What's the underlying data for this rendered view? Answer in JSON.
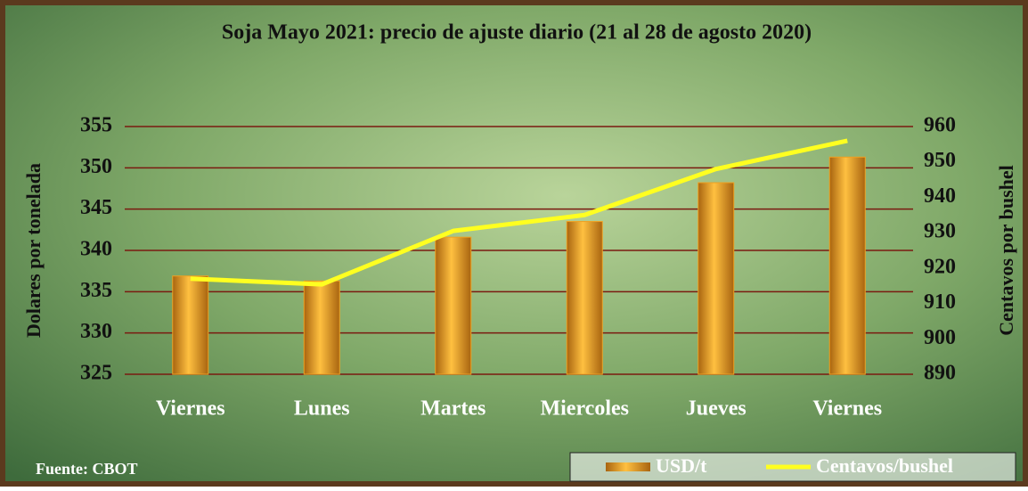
{
  "chart_data": {
    "type": "bar",
    "title": "Soja Mayo 2021: precio de ajuste diario  (21 al 28 de agosto 2020)",
    "y_label": "Dolares por tonelada",
    "y2_label": "Centavos por bushel",
    "source": "Fuente:  CBOT",
    "categories": [
      "Viernes",
      "Lunes",
      "Martes",
      "Miercoles",
      "Jueves",
      "Viernes"
    ],
    "series": [
      {
        "name": "USD/t",
        "type": "bar",
        "color": "#f0a020",
        "values": [
          336.9,
          336.3,
          341.6,
          343.5,
          348.2,
          351.3
        ]
      },
      {
        "name": "Centavos/bushel",
        "type": "line",
        "axis": "y2",
        "color": "#ffff20",
        "values": [
          917,
          915.4,
          930.5,
          935,
          948,
          956
        ]
      }
    ],
    "ylim": [
      325,
      355
    ],
    "yticks": [
      325,
      330,
      335,
      340,
      345,
      350,
      355
    ],
    "y2lim": [
      890,
      960
    ],
    "y2ticks": [
      890,
      900,
      910,
      920,
      930,
      940,
      950,
      960
    ],
    "grid": true
  }
}
